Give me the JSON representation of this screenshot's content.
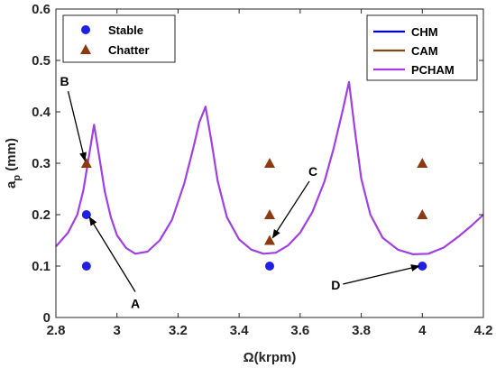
{
  "chart_data": {
    "type": "scatter",
    "xlabel": "Ω(krpm)",
    "ylabel_main": "a",
    "ylabel_sub": "p",
    "ylabel_unit": " (mm)",
    "xlim": [
      2.8,
      4.2
    ],
    "ylim": [
      0,
      0.6
    ],
    "xticks": [
      "2.8",
      "3",
      "3.2",
      "3.4",
      "3.6",
      "3.8",
      "4",
      "4.2"
    ],
    "yticks": [
      "0",
      "0.1",
      "0.2",
      "0.3",
      "0.4",
      "0.5",
      "0.6"
    ],
    "grid": false,
    "points": [
      {
        "name": "Stable",
        "color": "#1f1fe6",
        "marker": "circle",
        "x": [
          2.9,
          2.9,
          3.5,
          4.0
        ],
        "y": [
          0.1,
          0.2,
          0.1,
          0.1
        ]
      },
      {
        "name": "Chatter",
        "color": "#8b3a12",
        "marker": "triangle",
        "x": [
          2.9,
          3.5,
          3.5,
          3.5,
          4.0,
          4.0
        ],
        "y": [
          0.3,
          0.15,
          0.2,
          0.3,
          0.2,
          0.3
        ]
      }
    ],
    "lines": [
      {
        "name": "CHM",
        "color": "#0000cc"
      },
      {
        "name": "CAM",
        "color": "#7a4a1a"
      },
      {
        "name": "PCHAM",
        "color": "#a040e0",
        "x": [
          2.8,
          2.84,
          2.87,
          2.89,
          2.91,
          2.925,
          2.94,
          2.96,
          2.98,
          3.0,
          3.03,
          3.06,
          3.1,
          3.14,
          3.18,
          3.22,
          3.25,
          3.27,
          3.29,
          3.31,
          3.33,
          3.36,
          3.4,
          3.44,
          3.48,
          3.52,
          3.56,
          3.6,
          3.64,
          3.68,
          3.71,
          3.74,
          3.76,
          3.78,
          3.8,
          3.83,
          3.87,
          3.92,
          3.97,
          4.02,
          4.07,
          4.12,
          4.16,
          4.2
        ],
        "y": [
          0.138,
          0.165,
          0.2,
          0.248,
          0.32,
          0.375,
          0.32,
          0.245,
          0.195,
          0.16,
          0.135,
          0.124,
          0.128,
          0.15,
          0.19,
          0.26,
          0.33,
          0.38,
          0.41,
          0.34,
          0.265,
          0.195,
          0.152,
          0.132,
          0.124,
          0.126,
          0.14,
          0.165,
          0.205,
          0.265,
          0.33,
          0.405,
          0.458,
          0.36,
          0.27,
          0.2,
          0.155,
          0.132,
          0.123,
          0.124,
          0.136,
          0.158,
          0.178,
          0.2
        ]
      }
    ],
    "annotations": [
      {
        "label": "A",
        "from": [
          3.06,
          0.05
        ],
        "to": [
          2.91,
          0.195
        ]
      },
      {
        "label": "B",
        "from": [
          2.84,
          0.44
        ],
        "to": [
          2.895,
          0.305
        ]
      },
      {
        "label": "C",
        "from": [
          3.63,
          0.265
        ],
        "to": [
          3.51,
          0.155
        ]
      },
      {
        "label": "D",
        "from": [
          3.74,
          0.065
        ],
        "to": [
          3.99,
          0.1
        ]
      }
    ],
    "legend_points_position": "top-left",
    "legend_lines_position": "top-right"
  }
}
